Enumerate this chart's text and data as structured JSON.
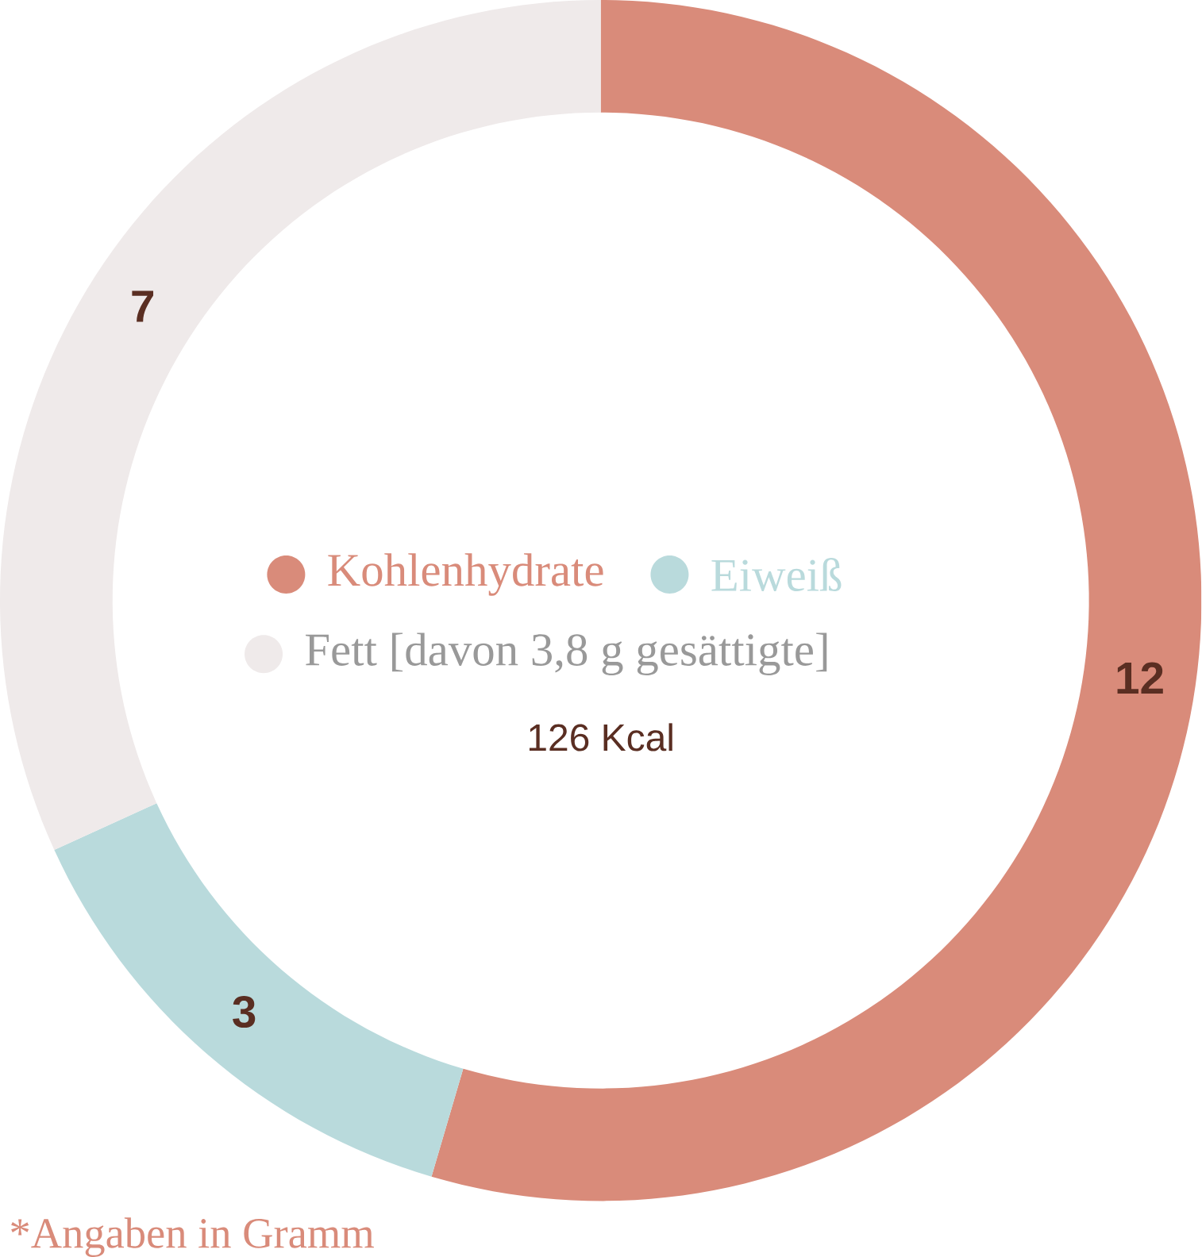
{
  "chart_data": {
    "type": "donut",
    "categories": [
      "Kohlenhydrate",
      "Eiweiß",
      "Fett  [davon 3,8 g gesättigte]"
    ],
    "values": [
      12,
      3,
      7
    ],
    "colors": [
      "#d98b7a",
      "#b9dadc",
      "#efeaea"
    ],
    "data_labels": true,
    "legend": "center",
    "annotations": [
      "126 Kcal",
      "*Angaben in Gramm"
    ]
  }
}
